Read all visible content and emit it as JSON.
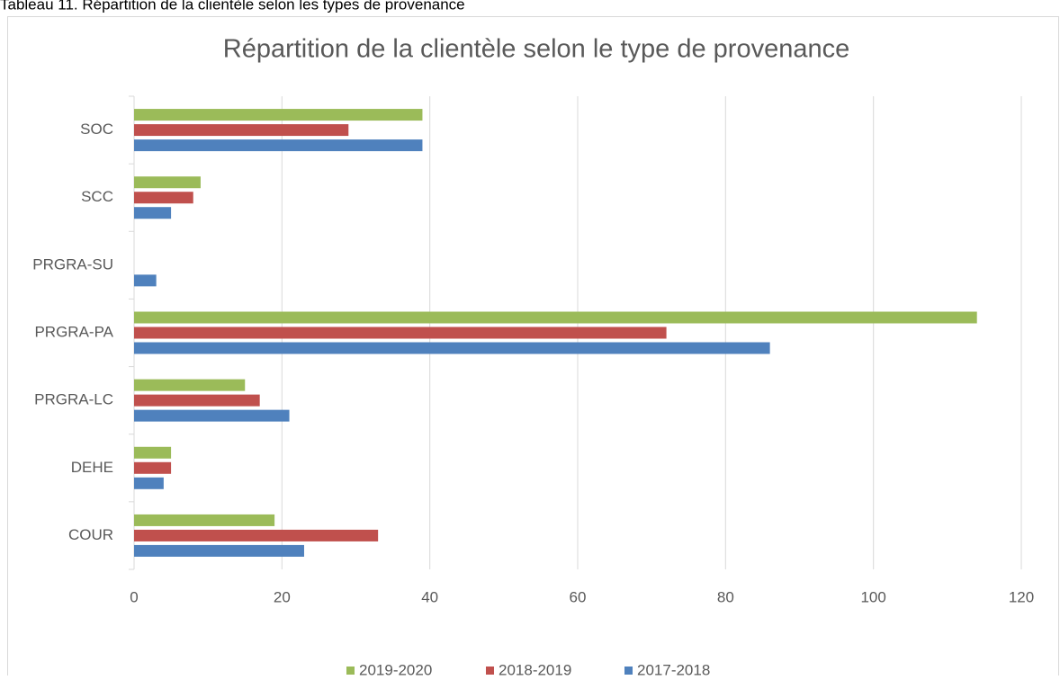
{
  "caption": "Tableau 11. Répartition de la clientèle selon les types de provenance",
  "chart_data": {
    "type": "hbar",
    "title": "Répartition de la clientèle selon le type de provenance",
    "categories": [
      "COUR",
      "DEHE",
      "PRGRA-LC",
      "PRGRA-PA",
      "PRGRA-SU",
      "SCC",
      "SOC"
    ],
    "series": [
      {
        "name": "2019-2020",
        "color": "#9bbb59",
        "values": [
          19,
          5,
          15,
          114,
          0,
          9,
          39
        ]
      },
      {
        "name": "2018-2019",
        "color": "#c0504d",
        "values": [
          33,
          5,
          17,
          72,
          0,
          8,
          29
        ]
      },
      {
        "name": "2017-2018",
        "color": "#4f81bd",
        "values": [
          23,
          4,
          21,
          86,
          3,
          5,
          39
        ]
      }
    ],
    "xlim": [
      0,
      120
    ],
    "xticks": [
      0,
      20,
      40,
      60,
      80,
      100,
      120
    ],
    "grid": true,
    "legend": "bottom"
  }
}
